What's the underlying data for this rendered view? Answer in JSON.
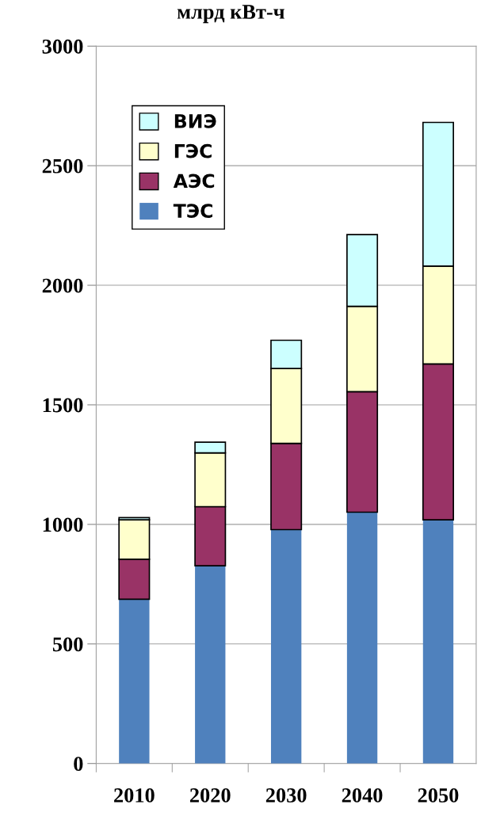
{
  "chart_data": {
    "type": "bar",
    "stacked": true,
    "title": "млрд кВт-ч",
    "categories": [
      "2010",
      "2020",
      "2030",
      "2040",
      "2050"
    ],
    "series": [
      {
        "name": "ТЭС",
        "color": "#4f81bd",
        "values": [
          687,
          827,
          978,
          1051,
          1019
        ]
      },
      {
        "name": "АЭС",
        "color": "#993366",
        "values": [
          167,
          247,
          361,
          504,
          652
        ]
      },
      {
        "name": "ГЭС",
        "color": "#ffffcc",
        "values": [
          165,
          225,
          313,
          357,
          409
        ]
      },
      {
        "name": "ВИЭ",
        "color": "#ccffff",
        "values": [
          9,
          45,
          118,
          300,
          601
        ]
      }
    ],
    "ylim": [
      0,
      3000
    ],
    "yticks": [
      0,
      500,
      1000,
      1500,
      2000,
      2500,
      3000
    ],
    "grid": "y",
    "legend": "top left"
  }
}
